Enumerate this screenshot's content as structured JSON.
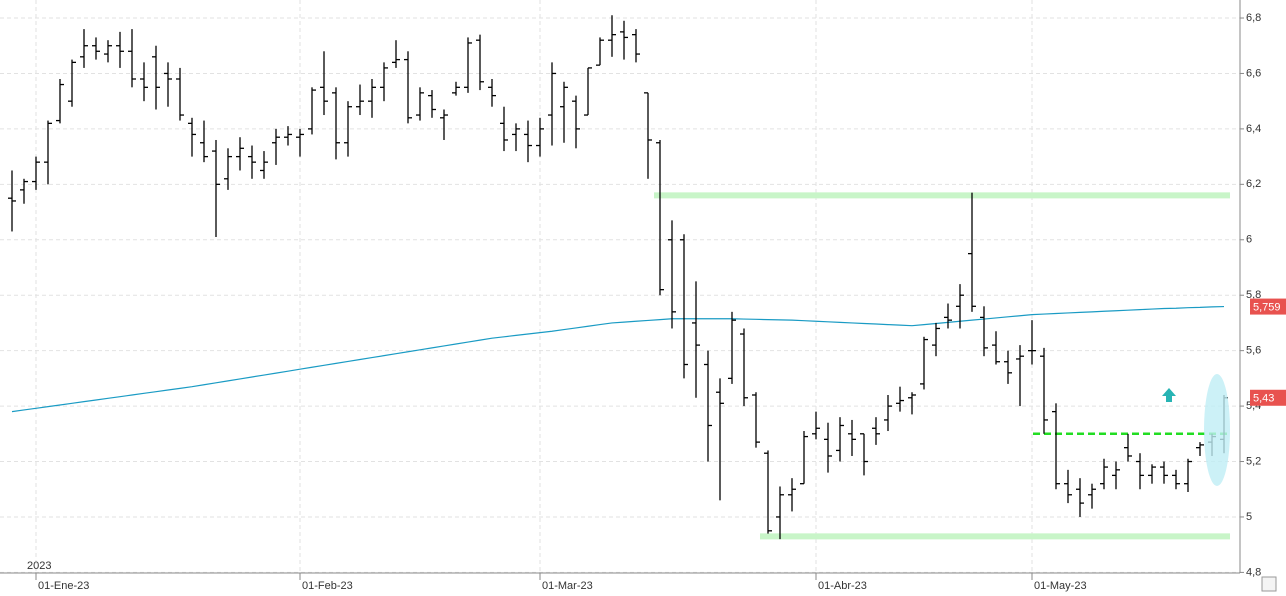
{
  "chart_data": {
    "type": "ohlc",
    "x": [
      "2022-12-30",
      "2023-01-02",
      "2023-01-03",
      "2023-01-04",
      "2023-01-05",
      "2023-01-06",
      "2023-01-09",
      "2023-01-10",
      "2023-01-11",
      "2023-01-12",
      "2023-01-13",
      "2023-01-16",
      "2023-01-17",
      "2023-01-18",
      "2023-01-19",
      "2023-01-20",
      "2023-01-23",
      "2023-01-24",
      "2023-01-25",
      "2023-01-26",
      "2023-01-27",
      "2023-01-30",
      "2023-01-31",
      "2023-02-01",
      "2023-02-02",
      "2023-02-03",
      "2023-02-06",
      "2023-02-07",
      "2023-02-08",
      "2023-02-09",
      "2023-02-10",
      "2023-02-13",
      "2023-02-14",
      "2023-02-15",
      "2023-02-16",
      "2023-02-17",
      "2023-02-20",
      "2023-02-21",
      "2023-02-22",
      "2023-02-23",
      "2023-02-24",
      "2023-02-27",
      "2023-02-28",
      "2023-03-01",
      "2023-03-02",
      "2023-03-03",
      "2023-03-06",
      "2023-03-07",
      "2023-03-08",
      "2023-03-09",
      "2023-03-10",
      "2023-03-13",
      "2023-03-14",
      "2023-03-15",
      "2023-03-16",
      "2023-03-17",
      "2023-03-20",
      "2023-03-21",
      "2023-03-22",
      "2023-03-23",
      "2023-03-24",
      "2023-03-27",
      "2023-03-28",
      "2023-03-29",
      "2023-03-30",
      "2023-03-31",
      "2023-04-03",
      "2023-04-04",
      "2023-04-05",
      "2023-04-06",
      "2023-04-11",
      "2023-04-12",
      "2023-04-13",
      "2023-04-14",
      "2023-04-17",
      "2023-04-18",
      "2023-04-19",
      "2023-04-20",
      "2023-04-21",
      "2023-04-24",
      "2023-04-25",
      "2023-04-26",
      "2023-04-27",
      "2023-04-28",
      "2023-05-01",
      "2023-05-02",
      "2023-05-03",
      "2023-05-04",
      "2023-05-05",
      "2023-05-08",
      "2023-05-09",
      "2023-05-10",
      "2023-05-11",
      "2023-05-12",
      "2023-05-15",
      "2023-05-16",
      "2023-05-17",
      "2023-05-18",
      "2023-05-19",
      "2023-05-22",
      "2023-05-23",
      "2023-05-24"
    ],
    "open": [
      6.15,
      6.18,
      6.21,
      6.28,
      6.43,
      6.5,
      6.66,
      6.7,
      6.67,
      6.7,
      6.68,
      6.58,
      6.66,
      6.6,
      6.58,
      6.42,
      6.35,
      6.32,
      6.22,
      6.3,
      6.3,
      6.25,
      6.35,
      6.37,
      6.37,
      6.4,
      6.55,
      6.53,
      6.35,
      6.48,
      6.5,
      6.55,
      6.64,
      6.65,
      6.45,
      6.52,
      6.44,
      6.53,
      6.55,
      6.72,
      6.55,
      6.42,
      6.38,
      6.38,
      6.34,
      6.45,
      6.48,
      6.5,
      6.45,
      6.63,
      6.72,
      6.75,
      6.74,
      6.53,
      6.35,
      6.0,
      6.0,
      5.7,
      5.55,
      5.45,
      5.5,
      5.66,
      5.44,
      5.23,
      5.0,
      5.08,
      5.12,
      5.3,
      5.28,
      5.24,
      5.3,
      5.3,
      5.32,
      5.35,
      5.41,
      5.43,
      5.48,
      5.62,
      5.72,
      5.76,
      5.95,
      5.72,
      5.62,
      5.56,
      5.57,
      5.6,
      5.58,
      5.38,
      5.12,
      5.1,
      5.08,
      5.12,
      5.15,
      5.25,
      5.2,
      5.15,
      5.18,
      5.15,
      5.12,
      5.25,
      5.27,
      5.28
    ],
    "high": [
      6.25,
      6.22,
      6.3,
      6.43,
      6.58,
      6.65,
      6.76,
      6.73,
      6.72,
      6.75,
      6.76,
      6.64,
      6.7,
      6.64,
      6.62,
      6.44,
      6.43,
      6.36,
      6.33,
      6.37,
      6.34,
      6.32,
      6.4,
      6.41,
      6.4,
      6.55,
      6.68,
      6.55,
      6.5,
      6.56,
      6.58,
      6.64,
      6.72,
      6.68,
      6.55,
      6.54,
      6.47,
      6.57,
      6.73,
      6.74,
      6.58,
      6.48,
      6.42,
      6.43,
      6.44,
      6.64,
      6.57,
      6.52,
      6.62,
      6.73,
      6.81,
      6.79,
      6.76,
      6.53,
      6.36,
      6.07,
      6.02,
      5.85,
      5.6,
      5.5,
      5.74,
      5.68,
      5.45,
      5.24,
      5.11,
      5.14,
      5.31,
      5.38,
      5.34,
      5.36,
      5.35,
      5.3,
      5.36,
      5.44,
      5.47,
      5.45,
      5.65,
      5.7,
      5.77,
      5.84,
      6.17,
      5.76,
      5.67,
      5.6,
      5.62,
      5.71,
      5.61,
      5.41,
      5.17,
      5.14,
      5.12,
      5.21,
      5.2,
      5.3,
      5.23,
      5.19,
      5.2,
      5.17,
      5.21,
      5.27,
      5.3,
      5.44
    ],
    "low": [
      6.03,
      6.13,
      6.18,
      6.2,
      6.42,
      6.48,
      6.62,
      6.65,
      6.64,
      6.62,
      6.55,
      6.5,
      6.47,
      6.48,
      6.43,
      6.3,
      6.28,
      6.01,
      6.18,
      6.25,
      6.22,
      6.22,
      6.27,
      6.34,
      6.3,
      6.38,
      6.45,
      6.29,
      6.3,
      6.45,
      6.44,
      6.5,
      6.62,
      6.42,
      6.43,
      6.44,
      6.36,
      6.52,
      6.53,
      6.54,
      6.48,
      6.32,
      6.32,
      6.28,
      6.3,
      6.34,
      6.35,
      6.33,
      6.45,
      6.63,
      6.66,
      6.65,
      6.64,
      6.22,
      5.8,
      5.68,
      5.5,
      5.43,
      5.2,
      5.06,
      5.48,
      5.4,
      5.25,
      4.94,
      4.92,
      5.02,
      5.12,
      5.28,
      5.16,
      5.2,
      5.22,
      5.15,
      5.26,
      5.31,
      5.38,
      5.37,
      5.46,
      5.58,
      5.68,
      5.68,
      5.74,
      5.58,
      5.55,
      5.48,
      5.4,
      5.55,
      5.3,
      5.1,
      5.05,
      5.0,
      5.03,
      5.1,
      5.1,
      5.2,
      5.1,
      5.12,
      5.12,
      5.1,
      5.09,
      5.22,
      5.22,
      5.23
    ],
    "close": [
      6.14,
      6.21,
      6.28,
      6.42,
      6.56,
      6.64,
      6.7,
      6.68,
      6.7,
      6.68,
      6.58,
      6.55,
      6.55,
      6.58,
      6.45,
      6.38,
      6.3,
      6.2,
      6.3,
      6.33,
      6.28,
      6.28,
      6.37,
      6.38,
      6.38,
      6.54,
      6.5,
      6.35,
      6.48,
      6.5,
      6.55,
      6.62,
      6.65,
      6.44,
      6.53,
      6.47,
      6.45,
      6.55,
      6.71,
      6.57,
      6.52,
      6.36,
      6.4,
      6.34,
      6.4,
      6.6,
      6.55,
      6.4,
      6.62,
      6.72,
      6.74,
      6.73,
      6.67,
      6.36,
      5.82,
      5.74,
      5.55,
      5.62,
      5.33,
      5.41,
      5.71,
      5.43,
      5.27,
      4.95,
      5.08,
      5.1,
      5.29,
      5.32,
      5.22,
      5.33,
      5.28,
      5.2,
      5.3,
      5.4,
      5.42,
      5.44,
      5.64,
      5.68,
      5.71,
      5.8,
      5.76,
      5.61,
      5.56,
      5.52,
      5.58,
      5.6,
      5.35,
      5.12,
      5.08,
      5.05,
      5.1,
      5.18,
      5.17,
      5.22,
      5.15,
      5.18,
      5.15,
      5.12,
      5.2,
      5.26,
      5.29,
      5.43
    ],
    "color": "#000000",
    "moving_average": {
      "color": "#1a9bc4",
      "values": [
        5.38,
        5.386,
        5.392,
        5.398,
        5.404,
        5.41,
        5.416,
        5.422,
        5.428,
        5.434,
        5.44,
        5.446,
        5.452,
        5.458,
        5.464,
        5.47,
        5.477,
        5.484,
        5.491,
        5.498,
        5.505,
        5.512,
        5.519,
        5.526,
        5.533,
        5.54,
        5.547,
        5.554,
        5.561,
        5.568,
        5.575,
        5.582,
        5.589,
        5.596,
        5.603,
        5.61,
        5.617,
        5.624,
        5.631,
        5.638,
        5.645,
        5.65,
        5.655,
        5.66,
        5.665,
        5.67,
        5.676,
        5.682,
        5.688,
        5.694,
        5.7,
        5.703,
        5.706,
        5.709,
        5.712,
        5.715,
        5.715,
        5.715,
        5.715,
        5.715,
        5.715,
        5.714,
        5.713,
        5.712,
        5.711,
        5.71,
        5.708,
        5.706,
        5.704,
        5.702,
        5.7,
        5.698,
        5.696,
        5.694,
        5.692,
        5.69,
        5.694,
        5.698,
        5.702,
        5.706,
        5.71,
        5.714,
        5.718,
        5.722,
        5.726,
        5.73,
        5.732,
        5.734,
        5.736,
        5.738,
        5.74,
        5.742,
        5.744,
        5.746,
        5.748,
        5.75,
        5.752,
        5.753,
        5.755,
        5.756,
        5.758,
        5.759
      ]
    },
    "levels": [
      {
        "value": 6.16,
        "color": "#c8f5c8"
      },
      {
        "value": 4.93,
        "color": "#c8f5c8"
      }
    ],
    "dashed_level": {
      "value": 5.3,
      "color": "#22dd22"
    },
    "price_markers": [
      {
        "value": 5.759,
        "label": "5,759",
        "color": "#e8524f"
      },
      {
        "value": 5.43,
        "label": "5,43",
        "color": "#e8524f"
      }
    ],
    "ylim": [
      4.8,
      6.865
    ],
    "yticks": [
      {
        "value": 6.8,
        "label": "6,8"
      },
      {
        "value": 6.6,
        "label": "6,6"
      },
      {
        "value": 6.4,
        "label": "6,4"
      },
      {
        "value": 6.2,
        "label": "6,2"
      },
      6,
      {
        "value": 5.8,
        "label": "5,8"
      },
      {
        "value": 5.6,
        "label": "5,6"
      },
      {
        "value": 5.4,
        "label": "5,4"
      },
      {
        "value": 5.2,
        "label": "5,2"
      },
      5,
      {
        "value": 4.8,
        "label": "4,8"
      }
    ],
    "xticks": [
      {
        "value": "2023-01-01",
        "label": "01-Ene-23"
      },
      {
        "value": "2023-02-01",
        "label": "01-Feb-23"
      },
      {
        "value": "2023-03-01",
        "label": "01-Mar-23"
      },
      {
        "value": "2023-04-01",
        "label": "01-Abr-23"
      },
      {
        "value": "2023-05-01",
        "label": "01-May-23"
      }
    ],
    "year_label": "2023",
    "grid": true
  }
}
